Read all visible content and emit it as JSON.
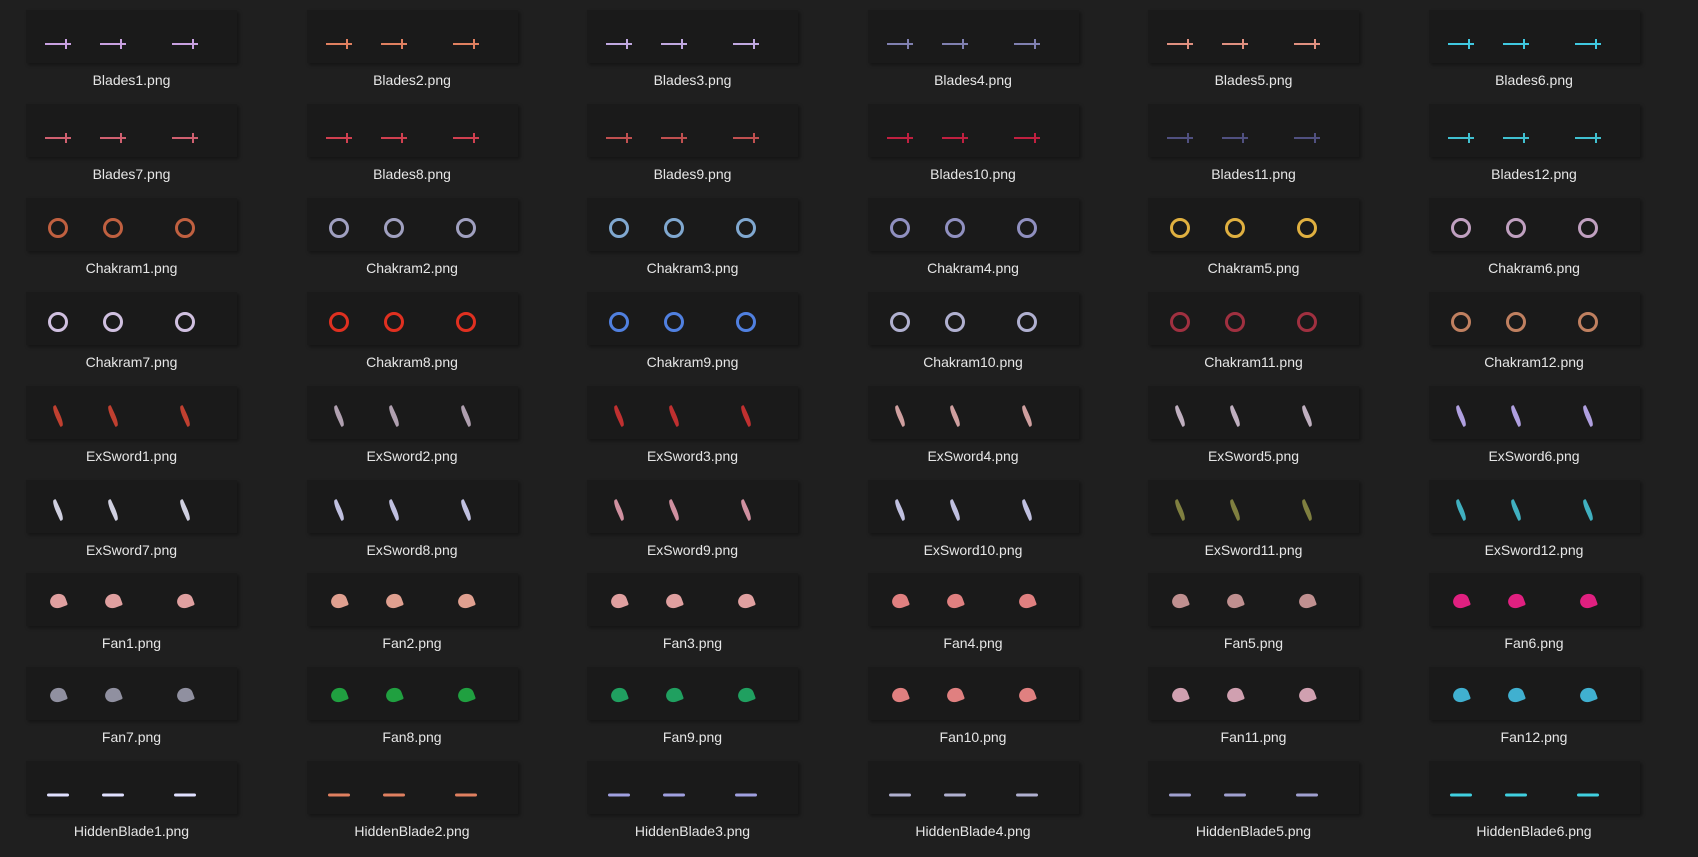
{
  "items": [
    {
      "name": "Blades1.png",
      "kind": "blades",
      "color": "#c8a0e0"
    },
    {
      "name": "Blades2.png",
      "kind": "blades",
      "color": "#e08060"
    },
    {
      "name": "Blades3.png",
      "kind": "blades",
      "color": "#c0a8e0"
    },
    {
      "name": "Blades4.png",
      "kind": "blades",
      "color": "#8080b0"
    },
    {
      "name": "Blades5.png",
      "kind": "blades",
      "color": "#e09080"
    },
    {
      "name": "Blades6.png",
      "kind": "blades",
      "color": "#40c8e0"
    },
    {
      "name": "Blades7.png",
      "kind": "blades",
      "color": "#d06070"
    },
    {
      "name": "Blades8.png",
      "kind": "blades",
      "color": "#d04050"
    },
    {
      "name": "Blades9.png",
      "kind": "blades",
      "color": "#c05050"
    },
    {
      "name": "Blades10.png",
      "kind": "blades",
      "color": "#c02040"
    },
    {
      "name": "Blades11.png",
      "kind": "blades",
      "color": "#505080"
    },
    {
      "name": "Blades12.png",
      "kind": "blades",
      "color": "#40c0d0"
    },
    {
      "name": "Chakram1.png",
      "kind": "chakram",
      "color": "#c06040"
    },
    {
      "name": "Chakram2.png",
      "kind": "chakram",
      "color": "#a0a0c0"
    },
    {
      "name": "Chakram3.png",
      "kind": "chakram",
      "color": "#80a8d0"
    },
    {
      "name": "Chakram4.png",
      "kind": "chakram",
      "color": "#9090c0"
    },
    {
      "name": "Chakram5.png",
      "kind": "chakram",
      "color": "#e0b040"
    },
    {
      "name": "Chakram6.png",
      "kind": "chakram",
      "color": "#c0a0c0"
    },
    {
      "name": "Chakram7.png",
      "kind": "chakram",
      "color": "#d0c0e0"
    },
    {
      "name": "Chakram8.png",
      "kind": "chakram",
      "color": "#e03020"
    },
    {
      "name": "Chakram9.png",
      "kind": "chakram",
      "color": "#5080e0"
    },
    {
      "name": "Chakram10.png",
      "kind": "chakram",
      "color": "#b0b0d0"
    },
    {
      "name": "Chakram11.png",
      "kind": "chakram",
      "color": "#a03040"
    },
    {
      "name": "Chakram12.png",
      "kind": "chakram",
      "color": "#c08060"
    },
    {
      "name": "ExSword1.png",
      "kind": "exsword",
      "color": "#c04030"
    },
    {
      "name": "ExSword2.png",
      "kind": "exsword",
      "color": "#b0a0b0"
    },
    {
      "name": "ExSword3.png",
      "kind": "exsword",
      "color": "#c03030"
    },
    {
      "name": "ExSword4.png",
      "kind": "exsword",
      "color": "#d0a0a0"
    },
    {
      "name": "ExSword5.png",
      "kind": "exsword",
      "color": "#c0b0c0"
    },
    {
      "name": "ExSword6.png",
      "kind": "exsword",
      "color": "#b0a0e0"
    },
    {
      "name": "ExSword7.png",
      "kind": "exsword",
      "color": "#d0d0e0"
    },
    {
      "name": "ExSword8.png",
      "kind": "exsword",
      "color": "#c0c0e0"
    },
    {
      "name": "ExSword9.png",
      "kind": "exsword",
      "color": "#d090a0"
    },
    {
      "name": "ExSword10.png",
      "kind": "exsword",
      "color": "#c0c0e0"
    },
    {
      "name": "ExSword11.png",
      "kind": "exsword",
      "color": "#808040"
    },
    {
      "name": "ExSword12.png",
      "kind": "exsword",
      "color": "#40b0c0"
    },
    {
      "name": "Fan1.png",
      "kind": "fan",
      "color": "#e0a0a0"
    },
    {
      "name": "Fan2.png",
      "kind": "fan",
      "color": "#e0a090"
    },
    {
      "name": "Fan3.png",
      "kind": "fan",
      "color": "#e0a0a0"
    },
    {
      "name": "Fan4.png",
      "kind": "fan",
      "color": "#e08080"
    },
    {
      "name": "Fan5.png",
      "kind": "fan",
      "color": "#c09090"
    },
    {
      "name": "Fan6.png",
      "kind": "fan",
      "color": "#e02080"
    },
    {
      "name": "Fan7.png",
      "kind": "fan",
      "color": "#9090a0"
    },
    {
      "name": "Fan8.png",
      "kind": "fan",
      "color": "#20a040"
    },
    {
      "name": "Fan9.png",
      "kind": "fan",
      "color": "#20a060"
    },
    {
      "name": "Fan10.png",
      "kind": "fan",
      "color": "#e08080"
    },
    {
      "name": "Fan11.png",
      "kind": "fan",
      "color": "#d0a0b0"
    },
    {
      "name": "Fan12.png",
      "kind": "fan",
      "color": "#40b0d0"
    },
    {
      "name": "HiddenBlade1.png",
      "kind": "hidden",
      "color": "#e0e0ff"
    },
    {
      "name": "HiddenBlade2.png",
      "kind": "hidden",
      "color": "#e08060"
    },
    {
      "name": "HiddenBlade3.png",
      "kind": "hidden",
      "color": "#a0a0e0"
    },
    {
      "name": "HiddenBlade4.png",
      "kind": "hidden",
      "color": "#b0b0d0"
    },
    {
      "name": "HiddenBlade5.png",
      "kind": "hidden",
      "color": "#a0a0d0"
    },
    {
      "name": "HiddenBlade6.png",
      "kind": "hidden",
      "color": "#40d0e0"
    }
  ]
}
